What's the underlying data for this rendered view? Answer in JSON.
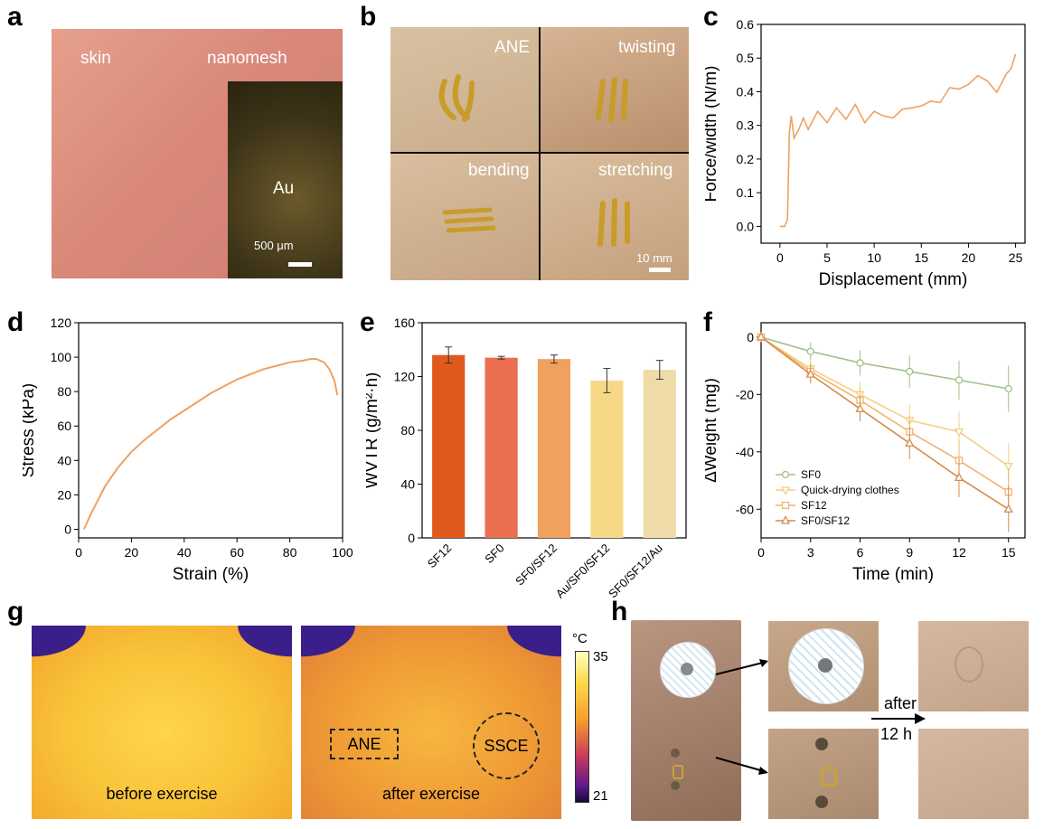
{
  "panels": {
    "a": {
      "letter": "a",
      "skin": "skin",
      "nanomesh": "nanomesh",
      "au": "Au",
      "scale": "500 μm"
    },
    "b": {
      "letter": "b",
      "ane": "ANE",
      "twisting": "twisting",
      "bending": "bending",
      "stretching": "stretching",
      "scale": "10 mm"
    },
    "c": {
      "letter": "c"
    },
    "d": {
      "letter": "d"
    },
    "e": {
      "letter": "e"
    },
    "f": {
      "letter": "f"
    },
    "g": {
      "letter": "g",
      "before": "before exercise",
      "after": "after exercise",
      "ane": "ANE",
      "ssce": "SSCE",
      "unit": "°C",
      "max": "35",
      "min": "21"
    },
    "h": {
      "letter": "h",
      "after_line1": "after",
      "after_line2": "12 h"
    }
  },
  "chart_data": [
    {
      "id": "c",
      "type": "line",
      "xlabel": "Displacement (mm)",
      "ylabel": "Force/width (N/m)",
      "xlim": [
        -2,
        26
      ],
      "ylim": [
        -0.05,
        0.6
      ],
      "xticks": [
        "0",
        "5",
        "10",
        "15",
        "20",
        "25"
      ],
      "yticks": [
        "0.0",
        "0.1",
        "0.2",
        "0.3",
        "0.4",
        "0.5",
        "0.6"
      ],
      "color": "#eea163",
      "x": [
        0.0,
        0.5,
        0.8,
        1.0,
        1.2,
        1.5,
        2.0,
        2.5,
        3.0,
        4.0,
        5.0,
        6.0,
        7.0,
        8.0,
        9.0,
        10.0,
        11.0,
        12.0,
        13.0,
        14.0,
        15.0,
        16.0,
        17.0,
        18.0,
        19.0,
        20.0,
        21.0,
        22.0,
        23.0,
        24.0,
        24.5,
        25.0
      ],
      "y": [
        0.0,
        0.0,
        0.02,
        0.28,
        0.34,
        0.25,
        0.3,
        0.31,
        0.3,
        0.33,
        0.32,
        0.34,
        0.33,
        0.35,
        0.32,
        0.33,
        0.34,
        0.31,
        0.36,
        0.34,
        0.37,
        0.36,
        0.38,
        0.4,
        0.42,
        0.41,
        0.46,
        0.42,
        0.41,
        0.44,
        0.48,
        0.5
      ]
    },
    {
      "id": "d",
      "type": "line",
      "xlabel": "Strain (%)",
      "ylabel": "Stress (kPa)",
      "xlim": [
        0,
        100
      ],
      "ylim": [
        -5,
        120
      ],
      "xticks": [
        "0",
        "20",
        "40",
        "60",
        "80",
        "100"
      ],
      "yticks": [
        "0",
        "20",
        "40",
        "60",
        "80",
        "100",
        "120"
      ],
      "color": "#eea163",
      "x": [
        2,
        5,
        10,
        15,
        20,
        25,
        30,
        35,
        40,
        45,
        50,
        55,
        60,
        65,
        70,
        75,
        80,
        85,
        88,
        90,
        93,
        95,
        97,
        98
      ],
      "y": [
        0,
        10,
        25,
        36,
        45,
        52,
        58,
        64,
        69,
        74,
        79,
        83,
        87,
        90,
        93,
        95,
        97,
        98,
        99,
        99,
        97,
        93,
        86,
        78
      ]
    },
    {
      "id": "e",
      "type": "bar",
      "ylabel": "WVTR (g/m²·h)",
      "ylim": [
        0,
        160
      ],
      "yticks": [
        "0",
        "40",
        "80",
        "120",
        "160"
      ],
      "categories": [
        "SF12",
        "SF0",
        "SF0/SF12",
        "Au/SF0/SF12",
        "SF0/SF12/Au"
      ],
      "values": [
        136,
        134,
        133,
        117,
        125
      ],
      "errors": [
        6,
        1,
        3,
        9,
        7
      ],
      "colors": [
        "#e05a1e",
        "#ea6e50",
        "#f0a15e",
        "#f6d887",
        "#efdba7"
      ]
    },
    {
      "id": "f",
      "type": "line",
      "xlabel": "Time (min)",
      "ylabel": "ΔWeight (mg)",
      "xlim": [
        0,
        16
      ],
      "ylim": [
        -70,
        5
      ],
      "xticks": [
        "0",
        "3",
        "6",
        "9",
        "12",
        "15"
      ],
      "yticks": [
        "0",
        "-20",
        "-40",
        "-60"
      ],
      "x": [
        0,
        3,
        6,
        9,
        12,
        15
      ],
      "series": [
        {
          "name": "SF0",
          "values": [
            0,
            -5,
            -9,
            -12,
            -15,
            -18
          ],
          "color": "#a1c08a",
          "marker": "circle"
        },
        {
          "name": "Quick-drying clothes",
          "values": [
            0,
            -11,
            -20,
            -29,
            -33,
            -45
          ],
          "color": "#f2d080",
          "marker": "triangle-down"
        },
        {
          "name": "SF12",
          "values": [
            0,
            -12,
            -22,
            -33,
            -43,
            -54
          ],
          "color": "#f3b470",
          "marker": "square"
        },
        {
          "name": "SF0/SF12",
          "values": [
            0,
            -13,
            -25,
            -37,
            -49,
            -60
          ],
          "color": "#d88a4a",
          "marker": "triangle-up"
        }
      ]
    }
  ]
}
